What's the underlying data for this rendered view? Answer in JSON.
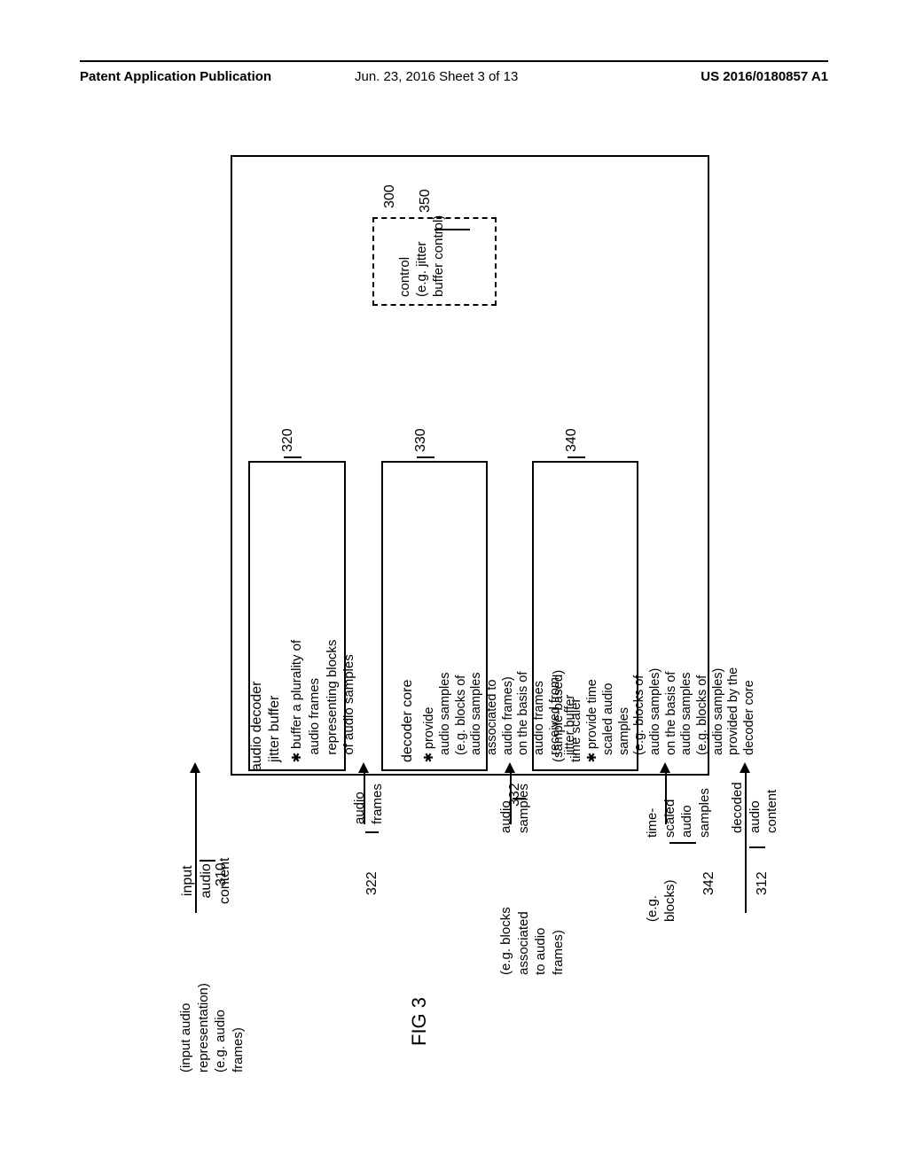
{
  "header": {
    "left": "Patent Application Publication",
    "mid": "Jun. 23, 2016  Sheet 3 of 13",
    "right": "US 2016/0180857 A1"
  },
  "figure_label": "FIG 3",
  "refs": {
    "decoder_system": "300",
    "input": "310",
    "output": "312",
    "jitter_buffer": "320",
    "jitter_out": "322",
    "decoder_core": "330",
    "decoder_out": "332",
    "time_scaler": "340",
    "scaler_out": "342",
    "control": "350"
  },
  "labels": {
    "outer": "audio decoder",
    "input_top": "input\naudio\ncontent",
    "input_bottom": "(input audio\nrepresentation)\n(e.g. audio\nframes)",
    "jitter_title": "jitter buffer",
    "jitter_desc": "✱ buffer a plurality of\naudio frames\nrepresenting blocks\nof audio samples",
    "jitter_out_top": "audio\nframes",
    "decoder_title": "decoder core",
    "decoder_desc": "✱ provide\naudio samples\n(e.g. blocks of\naudio samples\nassociated to\naudio frames)\non the basis of\naudio frames\nreceived from\njitter buffer",
    "decoder_out_top": "audio\nsamples",
    "decoder_out_bottom": "(e.g. blocks\nassociated\nto audio\nframes)",
    "scaler_title": "(sample-based)\ntime scaler",
    "scaler_desc": "✱ provide time\nscaled audio\nsamples\n(e.g. blocks of\naudio samples)\non the basis of\naudio samples\n(e.g. blocks of\naudio samples)\nprovided by the\ndecoder core",
    "scaler_out_top": "time-\nscaled\naudio\nsamples",
    "scaler_out_bottom": "(e.g.\nblocks)",
    "output_top": "decoded\naudio\ncontent",
    "control": "control\n(e.g. jitter\nbuffer control)"
  }
}
